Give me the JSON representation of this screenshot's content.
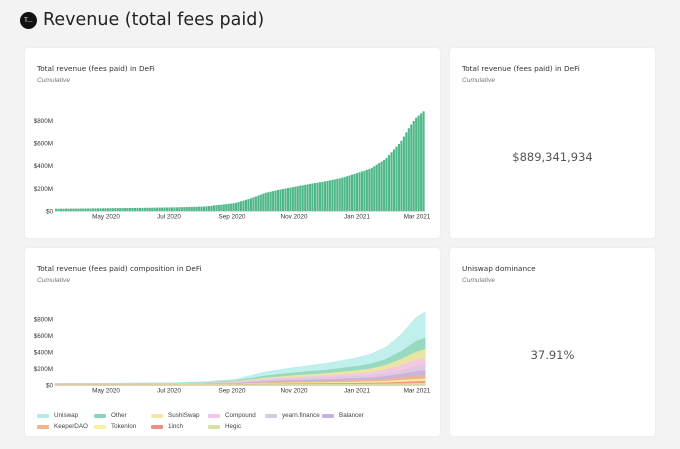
{
  "page": {
    "title": "Revenue (total fees paid)",
    "logo_text": "T..."
  },
  "cards": {
    "c1": {
      "title": "Total revenue (fees paid) in DeFi",
      "subtitle": "Cumulative"
    },
    "c2": {
      "title": "Total revenue (fees paid) in DeFi",
      "subtitle": "Cumulative",
      "value": "$889,341,934"
    },
    "c3": {
      "title": "Total revenue (fees paid) composition in DeFi",
      "subtitle": "Cumulative"
    },
    "c4": {
      "title": "Uniswap dominance",
      "subtitle": "Cumulative",
      "value": "37.91%"
    }
  },
  "chart_data": [
    {
      "type": "bar",
      "title": "Total revenue (fees paid) in DeFi",
      "x_ticks": [
        "May 2020",
        "Jul 2020",
        "Sep 2020",
        "Nov 2020",
        "Jan 2021",
        "Mar 2021"
      ],
      "y_ticks": [
        "$0",
        "$200M",
        "$400M",
        "$600M",
        "$800M"
      ],
      "ylim": [
        0,
        900
      ],
      "unit": "M",
      "color": "#4fb888",
      "x_months": [
        0,
        1,
        2,
        3,
        4,
        5,
        5.5,
        6,
        6.5,
        7,
        7.5,
        8,
        8.5,
        9,
        9.5,
        10,
        10.5,
        11,
        11.5,
        11.8,
        12,
        12.3
      ],
      "values": [
        20,
        22,
        25,
        28,
        32,
        40,
        55,
        70,
        110,
        160,
        190,
        215,
        240,
        262,
        290,
        330,
        375,
        460,
        610,
        745,
        820,
        889
      ]
    },
    {
      "type": "area",
      "title": "Total revenue (fees paid) composition in DeFi",
      "x_ticks": [
        "May 2020",
        "Jul 2020",
        "Sep 2020",
        "Nov 2020",
        "Jan 2021",
        "Mar 2021"
      ],
      "y_ticks": [
        "$0",
        "$200M",
        "$400M",
        "$600M",
        "$800M"
      ],
      "ylim": [
        0,
        900
      ],
      "unit": "M",
      "x_months": [
        0,
        2,
        4,
        5,
        6,
        7,
        8,
        9,
        10,
        10.5,
        11,
        11.5,
        12,
        12.3
      ],
      "series": [
        {
          "name": "Uniswap",
          "color": "#b6ece8",
          "values": [
            20,
            22,
            28,
            40,
            70,
            160,
            215,
            262,
            330,
            375,
            460,
            610,
            820,
            889
          ]
        },
        {
          "name": "Other",
          "color": "#8fd6b8",
          "values": [
            18,
            19,
            22,
            30,
            52,
            110,
            150,
            180,
            225,
            255,
            310,
            405,
            530,
            570
          ]
        },
        {
          "name": "SushiSwap",
          "color": "#f8e6a0",
          "values": [
            15,
            16,
            18,
            24,
            40,
            85,
            115,
            140,
            172,
            195,
            240,
            310,
            400,
            430
          ]
        },
        {
          "name": "Compound",
          "color": "#f4c3ea",
          "values": [
            12,
            13,
            15,
            20,
            33,
            70,
            92,
            110,
            135,
            152,
            185,
            235,
            300,
            320
          ]
        },
        {
          "name": "yearn.finance",
          "color": "#d9c8e2",
          "values": [
            10,
            10,
            12,
            15,
            26,
            55,
            72,
            86,
            104,
            117,
            140,
            176,
            222,
            238
          ]
        },
        {
          "name": "Balancer",
          "color": "#c3b2dd",
          "values": [
            8,
            8,
            9,
            12,
            20,
            42,
            55,
            65,
            79,
            88,
            104,
            130,
            162,
            172
          ]
        },
        {
          "name": "KeeperDAO",
          "color": "#f2b38c",
          "values": [
            6,
            6,
            7,
            9,
            15,
            30,
            40,
            46,
            56,
            62,
            72,
            90,
            112,
            118
          ]
        },
        {
          "name": "Tokenlon",
          "color": "#f7f09c",
          "values": [
            4,
            4,
            5,
            6,
            10,
            20,
            26,
            30,
            36,
            40,
            46,
            57,
            70,
            74
          ]
        },
        {
          "name": "1inch",
          "color": "#f08e82",
          "values": [
            3,
            3,
            3,
            4,
            6,
            12,
            15,
            18,
            21,
            23,
            27,
            33,
            41,
            43
          ]
        },
        {
          "name": "Hegic",
          "color": "#d2e3a4",
          "values": [
            1,
            1,
            1,
            2,
            3,
            6,
            7,
            8,
            10,
            11,
            13,
            16,
            20,
            21
          ]
        }
      ]
    }
  ]
}
